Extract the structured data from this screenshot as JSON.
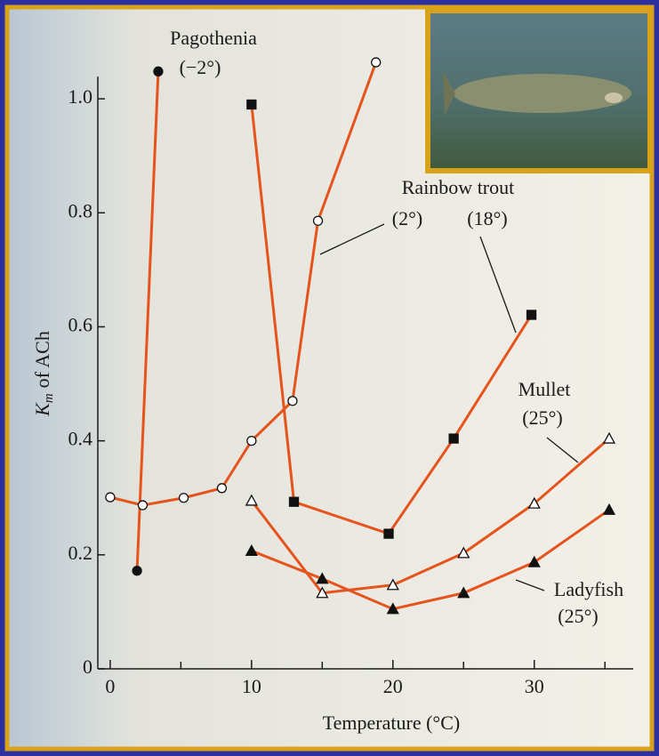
{
  "chart_data": {
    "type": "line",
    "xlabel": "Temperature (°C)",
    "ylabel": {
      "symbol": "K",
      "subscript": "m",
      "text": "of ACh"
    },
    "xlim": [
      -1,
      37
    ],
    "ylim": [
      0,
      1.1
    ],
    "xticks": [
      0,
      10,
      20,
      30
    ],
    "xminorticks": [
      5,
      15,
      25,
      35
    ],
    "yticks": [
      0,
      {
        "value": 0.2,
        "label": "0.2"
      },
      {
        "value": 0.4,
        "label": "0.4"
      },
      {
        "value": 0.6,
        "label": "0.6"
      },
      {
        "value": 0.8,
        "label": "0.8"
      },
      {
        "value": 1,
        "label": "1.0"
      }
    ],
    "annotations": [
      "Pagothenia",
      "(−2°)",
      "Rainbow trout",
      "(2°)",
      "(18°)",
      "Mullet",
      "(25°)",
      "Ladyfish",
      "(25°)"
    ],
    "series": [
      {
        "color": "#e4541c",
        "marker": "filled-circle",
        "x": [
          1.9,
          3.4
        ],
        "values": [
          0.172,
          1.048
        ]
      },
      {
        "color": "#e4541c",
        "marker": "open-circle",
        "x": [
          0,
          2.3,
          5.2,
          7.9,
          10,
          12.9,
          14.7,
          18.8
        ],
        "values": [
          0.301,
          0.287,
          0.3,
          0.317,
          0.4,
          0.47,
          0.786,
          1.064
        ]
      },
      {
        "color": "#e4541c",
        "marker": "filled-square",
        "x": [
          10,
          13,
          19.7,
          24.3,
          29.8
        ],
        "values": [
          0.99,
          0.293,
          0.237,
          0.404,
          0.621
        ]
      },
      {
        "color": "#e4541c",
        "marker": "open-triangle",
        "x": [
          10,
          15,
          20,
          25,
          30,
          35.3
        ],
        "values": [
          0.295,
          0.133,
          0.147,
          0.203,
          0.29,
          0.404
        ]
      },
      {
        "color": "#e4541c",
        "marker": "filled-triangle",
        "x": [
          10,
          15,
          20,
          25,
          30,
          35.3
        ],
        "values": [
          0.207,
          0.158,
          0.105,
          0.133,
          0.187,
          0.279
        ]
      }
    ]
  }
}
